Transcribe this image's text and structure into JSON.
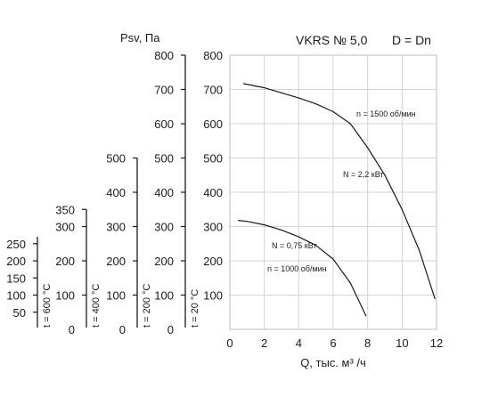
{
  "chart_data": {
    "type": "line",
    "title": "VKRS № 5,0",
    "subtitle": "D = Dn",
    "xlabel": "Q, тыс. м³ /ч",
    "ylabel": "Psv, Па",
    "xlim": [
      0,
      12
    ],
    "ylim": [
      0,
      800
    ],
    "x_ticks": [
      "0",
      "2",
      "4",
      "6",
      "8",
      "10",
      "12"
    ],
    "y_ticks": [
      "100",
      "200",
      "300",
      "400",
      "500",
      "600",
      "700",
      "800"
    ],
    "grid": true,
    "series": [
      {
        "name": "n = 1500 об/мин",
        "power_label": "N = 2,2 кВт",
        "x": [
          0.8,
          2,
          3,
          4,
          5,
          6,
          7,
          8,
          9,
          10,
          11,
          11.9
        ],
        "y": [
          717,
          705,
          690,
          675,
          658,
          635,
          600,
          530,
          450,
          350,
          230,
          90
        ]
      },
      {
        "name": "n = 1000 об/мин",
        "power_label": "N = 0,75 кВт",
        "x": [
          0.5,
          1,
          2,
          3,
          4,
          5,
          6,
          7,
          7.9
        ],
        "y": [
          318,
          315,
          305,
          290,
          270,
          245,
          205,
          135,
          40
        ]
      }
    ],
    "secondary_axes": [
      {
        "temperature": "t = 20 °C",
        "max": 800,
        "ticks": [
          "0",
          "100",
          "200",
          "300",
          "400",
          "500",
          "600",
          "700",
          "800"
        ]
      },
      {
        "temperature": "t = 200 °C",
        "max": 500,
        "ticks": [
          "0",
          "100",
          "200",
          "300",
          "400",
          "500"
        ]
      },
      {
        "temperature": "t = 400 °C",
        "max": 350,
        "ticks": [
          "0",
          "100",
          "200",
          "300",
          "350"
        ]
      },
      {
        "temperature": "t = 600 °C",
        "max": 270,
        "ticks": [
          "50",
          "100",
          "150",
          "200",
          "250"
        ]
      }
    ]
  }
}
